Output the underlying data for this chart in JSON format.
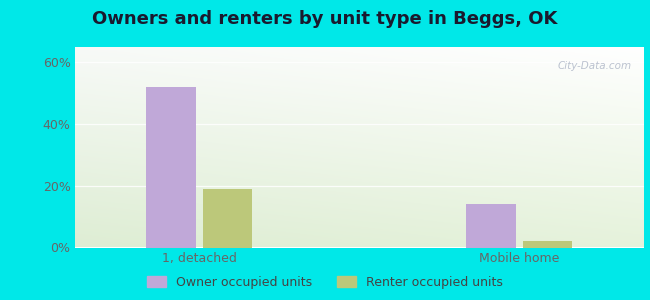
{
  "title": "Owners and renters by unit type in Beggs, OK",
  "categories": [
    "1, detached",
    "Mobile home"
  ],
  "owner_values": [
    52,
    14
  ],
  "renter_values": [
    19,
    2
  ],
  "owner_color": "#c0a8d8",
  "renter_color": "#bcc87a",
  "bar_width": 0.28,
  "ylim": [
    0,
    65
  ],
  "yticks": [
    0,
    20,
    40,
    60
  ],
  "yticklabels": [
    "0%",
    "20%",
    "40%",
    "60%"
  ],
  "legend_owner": "Owner occupied units",
  "legend_renter": "Renter occupied units",
  "outer_bg": "#00e8e8",
  "watermark": "City-Data.com",
  "title_fontsize": 13,
  "tick_fontsize": 9,
  "legend_fontsize": 9,
  "group_positions": [
    1.0,
    2.8
  ],
  "xlim": [
    0.3,
    3.5
  ]
}
